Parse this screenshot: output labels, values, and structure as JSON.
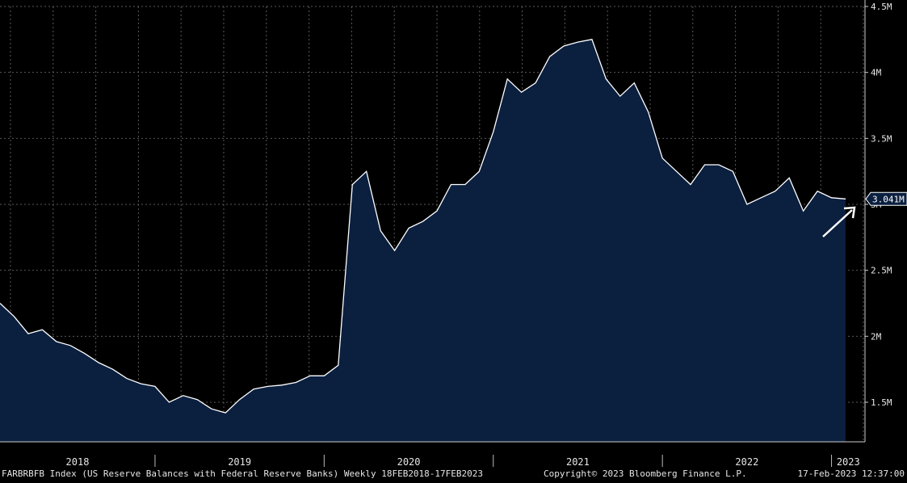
{
  "chart_data": {
    "type": "area",
    "ticker": "FARBRBFB Index",
    "description": "(US Reserve Balances with Federal Reserve Banks)",
    "frequency": "Weekly",
    "date_range": "18FEB2018-17FEB2023",
    "y_tick_labels": [
      "4.5M",
      "4M",
      "3.5M",
      "3M",
      "2.5M",
      "2M",
      "1.5M"
    ],
    "y_tick_values": [
      4.5,
      4.0,
      3.5,
      3.0,
      2.5,
      2.0,
      1.5
    ],
    "ylim": [
      1.2,
      4.5
    ],
    "x_year_labels": [
      "2018",
      "2019",
      "2020",
      "2021",
      "2022",
      "2023"
    ],
    "last_value_label": "3.041M",
    "grid": true,
    "annotation": "up-arrow",
    "colors": {
      "background": "#000000",
      "line": "#ffffff",
      "fill": "#0b1f3f",
      "grid": "#5a5a5a",
      "label_box": "#0b1f3f"
    },
    "series": [
      {
        "x": [
          "2018-02",
          "2018-03",
          "2018-04",
          "2018-05",
          "2018-06",
          "2018-07",
          "2018-08",
          "2018-09",
          "2018-10",
          "2018-11",
          "2018-12",
          "2019-01",
          "2019-02",
          "2019-03",
          "2019-04",
          "2019-05",
          "2019-06",
          "2019-07",
          "2019-08",
          "2019-09",
          "2019-10",
          "2019-11",
          "2019-12",
          "2020-01",
          "2020-02",
          "2020-03",
          "2020-04",
          "2020-05",
          "2020-06",
          "2020-07",
          "2020-08",
          "2020-09",
          "2020-10",
          "2020-11",
          "2020-12",
          "2021-01",
          "2021-02",
          "2021-03",
          "2021-04",
          "2021-05",
          "2021-06",
          "2021-07",
          "2021-08",
          "2021-09",
          "2021-10",
          "2021-11",
          "2021-12",
          "2022-01",
          "2022-02",
          "2022-03",
          "2022-04",
          "2022-05",
          "2022-06",
          "2022-07",
          "2022-08",
          "2022-09",
          "2022-10",
          "2022-11",
          "2022-12",
          "2023-01",
          "2023-02"
        ],
        "values": [
          2.25,
          2.15,
          2.02,
          2.05,
          1.96,
          1.93,
          1.87,
          1.8,
          1.75,
          1.68,
          1.64,
          1.62,
          1.5,
          1.55,
          1.52,
          1.45,
          1.42,
          1.52,
          1.6,
          1.62,
          1.63,
          1.65,
          1.7,
          1.7,
          1.78,
          3.15,
          3.25,
          2.8,
          2.65,
          2.82,
          2.87,
          2.95,
          3.15,
          3.15,
          3.25,
          3.55,
          3.95,
          3.85,
          3.92,
          4.12,
          4.2,
          4.23,
          4.25,
          3.95,
          3.82,
          3.92,
          3.7,
          3.35,
          3.25,
          3.15,
          3.3,
          3.3,
          3.25,
          3.0,
          3.05,
          3.1,
          3.2,
          2.95,
          3.1,
          3.05,
          3.041
        ]
      }
    ]
  },
  "footer": {
    "left": "FARBRBFB Index (US Reserve Balances with Federal Reserve Banks)  Weekly 18FEB2018-17FEB2023",
    "copyright": "Copyright© 2023 Bloomberg Finance L.P.",
    "timestamp": "17-Feb-2023 12:37:00"
  }
}
